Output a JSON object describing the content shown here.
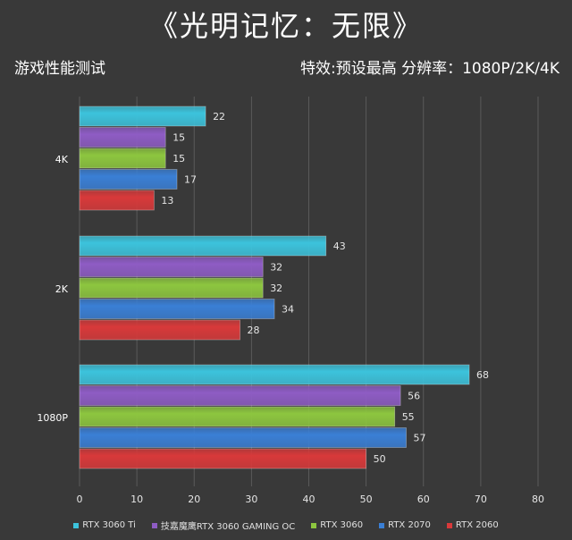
{
  "header": {
    "title": "《光明记忆：无限》",
    "left_caption": "游戏性能测试",
    "right_caption": "特效:预设最高  分辨率：1080P/2K/4K"
  },
  "chart_data": {
    "type": "bar",
    "orientation": "horizontal",
    "categories": [
      "4K",
      "2K",
      "1080P"
    ],
    "series": [
      {
        "name": "RTX 3060 Ti",
        "color": "#3cc3dc",
        "values": [
          22,
          43,
          68
        ]
      },
      {
        "name": "技嘉魔鹰RTX 3060 GAMING OC",
        "color": "#8e5cc4",
        "values": [
          15,
          32,
          56
        ]
      },
      {
        "name": "RTX 3060",
        "color": "#8dc63f",
        "values": [
          15,
          32,
          55
        ]
      },
      {
        "name": "RTX 2070",
        "color": "#3a7fd5",
        "values": [
          17,
          34,
          57
        ]
      },
      {
        "name": "RTX 2060",
        "color": "#d8393a",
        "values": [
          13,
          28,
          50
        ]
      }
    ],
    "xlim": [
      0,
      80
    ],
    "xticks": [
      0,
      10,
      20,
      30,
      40,
      50,
      60,
      70,
      80
    ],
    "grid": true,
    "legend_position": "bottom"
  }
}
